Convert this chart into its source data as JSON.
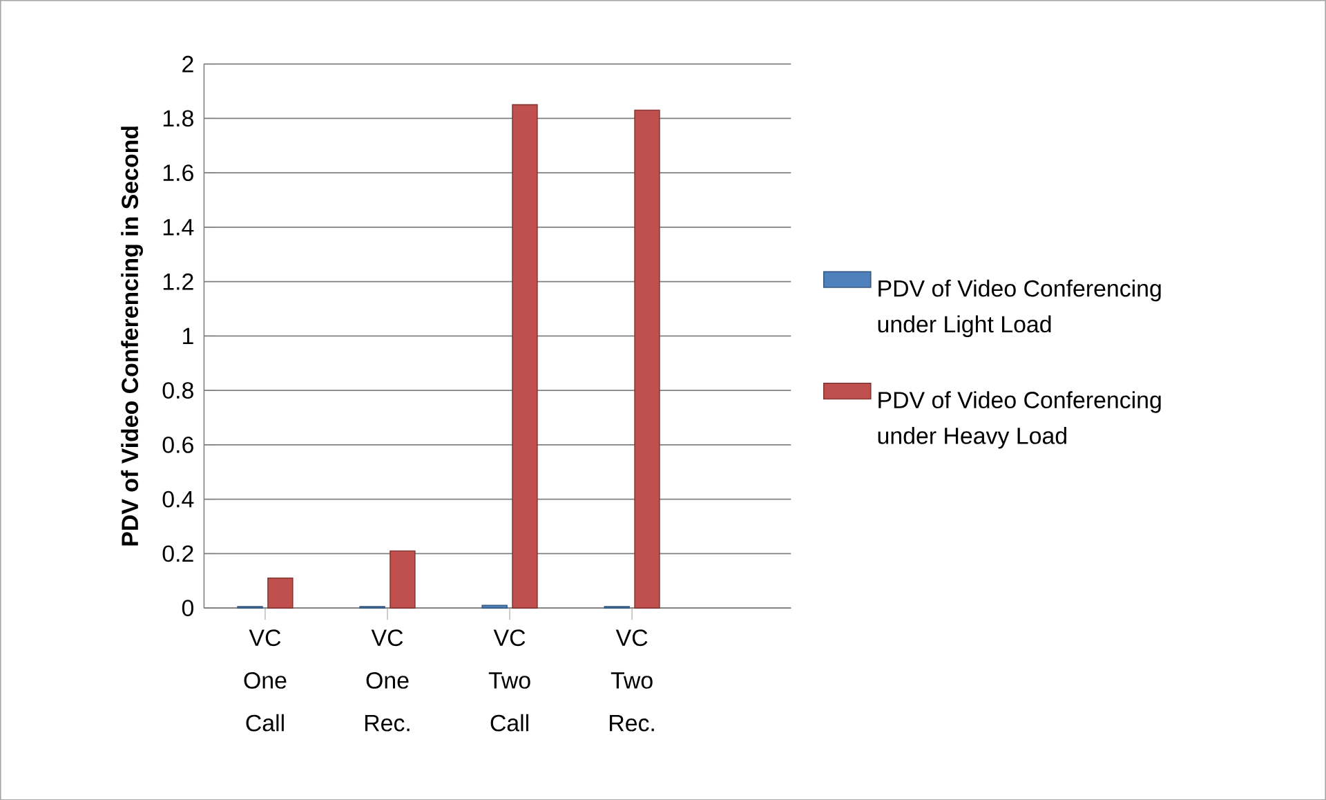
{
  "chart_data": {
    "type": "bar",
    "ylabel": "PDV of Video Conferencing in Second",
    "categories": [
      "VC One Call",
      "VC One Rec.",
      "VC Two Call",
      "VC Two Rec."
    ],
    "series": [
      {
        "name": "PDV of Video Conferencing under Light Load",
        "color": "#4f81bd",
        "values": [
          0.005,
          0.005,
          0.01,
          0.005
        ]
      },
      {
        "name": "PDV of Video Conferencing under Heavy Load",
        "color": "#c0504d",
        "values": [
          0.11,
          0.21,
          1.85,
          1.83
        ]
      }
    ],
    "ylim": [
      0,
      2
    ],
    "yticks": [
      0,
      0.2,
      0.4,
      0.6,
      0.8,
      1,
      1.2,
      1.4,
      1.6,
      1.8,
      2
    ],
    "grid": "y",
    "legend": "right"
  }
}
